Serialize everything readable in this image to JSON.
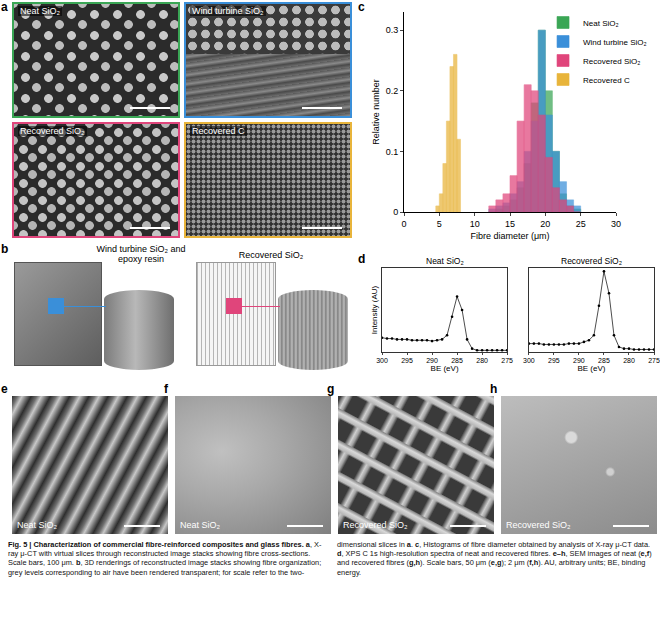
{
  "figure": {
    "panels": [
      {
        "label": "a",
        "images": [
          {
            "label": "Neat SiO₂",
            "color": "#3aa655"
          },
          {
            "label": "Wind turbine SiO₂",
            "color": "#3a8fd9"
          },
          {
            "label": "Recovered SiO₂",
            "color": "#e0457b"
          },
          {
            "label": "Recovered C",
            "color": "#e8b43a"
          }
        ]
      },
      {
        "label": "b",
        "images": [
          {
            "label": "Wind turbine SiO₂ and epoxy resin",
            "color": "#3a8fd9"
          },
          {
            "label": "Recovered SiO₂",
            "color": "#e0457b"
          }
        ]
      },
      {
        "label": "c"
      },
      {
        "label": "d"
      },
      {
        "label": "e",
        "images": [
          {
            "label": "Neat SiO₂"
          }
        ]
      },
      {
        "label": "f",
        "images": [
          {
            "label": "Neat SiO₂"
          }
        ]
      },
      {
        "label": "g",
        "images": [
          {
            "label": "Recovered SiO₂"
          }
        ]
      },
      {
        "label": "h",
        "images": [
          {
            "label": "Recovered SiO₂"
          }
        ]
      }
    ],
    "caption": [
      {
        "text": "Fig. 5 | Characterization of commercial fibre-reinforced composites and glass fibres. ",
        "bold": true
      },
      {
        "text": "a",
        "bold": true
      },
      {
        "text": ", X-ray μ-CT with virtual slices through reconstructed image stacks showing fibre cross-sections. Scale bars, 100 μm. ",
        "bold": false
      },
      {
        "text": "b",
        "bold": true
      },
      {
        "text": ", 3D renderings of reconstructed image stacks showing fibre organization; grey levels corresponding to air have been rendered transparent; for scale refer to the two-dimensional slices in ",
        "bold": false
      },
      {
        "text": "a",
        "bold": true
      },
      {
        "text": ". ",
        "bold": false
      },
      {
        "text": "c",
        "bold": true
      },
      {
        "text": ", Histograms of fibre diameter obtained by analysis of X-ray μ-CT data. ",
        "bold": false
      },
      {
        "text": "d",
        "bold": true
      },
      {
        "text": ", XPS C 1s high-resolution spectra of neat and recovered fibres. ",
        "bold": false
      },
      {
        "text": "e–h",
        "bold": true
      },
      {
        "text": ", SEM images of neat (",
        "bold": false
      },
      {
        "text": "e,f",
        "bold": true
      },
      {
        "text": ") and recovered fibres (",
        "bold": false
      },
      {
        "text": "g,h",
        "bold": true
      },
      {
        "text": "). Scale bars, 50 μm (",
        "bold": false
      },
      {
        "text": "e,g",
        "bold": true
      },
      {
        "text": "); 2 μm (",
        "bold": false
      },
      {
        "text": "f,h",
        "bold": true
      },
      {
        "text": "). AU, arbitrary units; BE, binding energy.",
        "bold": false
      }
    ]
  },
  "chart_data": [
    {
      "type": "histogram",
      "xlabel": "Fibre diameter (μm)",
      "ylabel": "Relative number",
      "xlim": [
        0,
        30
      ],
      "xticks": [
        0,
        5,
        10,
        15,
        20,
        25,
        30
      ],
      "ylim": [
        0,
        0.33
      ],
      "yticks": [
        0,
        0.1,
        0.2,
        0.3
      ],
      "legend": "upper right",
      "series": [
        {
          "name": "Neat SiO₂",
          "color": "#3aa655",
          "bins": [
            12,
            13,
            14,
            15,
            16,
            17,
            18,
            19,
            20,
            21,
            22,
            23,
            24,
            25
          ],
          "values": [
            0,
            0.005,
            0.01,
            0.02,
            0.04,
            0.08,
            0.18,
            0.3,
            0.2,
            0.1,
            0.03,
            0.01,
            0.005
          ]
        },
        {
          "name": "Wind turbine SiO₂",
          "color": "#3a8fd9",
          "bins": [
            12,
            13,
            14,
            15,
            16,
            17,
            18,
            19,
            20,
            21,
            22,
            23,
            24,
            25
          ],
          "values": [
            0.005,
            0.01,
            0.015,
            0.03,
            0.05,
            0.1,
            0.15,
            0.3,
            0.16,
            0.1,
            0.05,
            0.02,
            0.01
          ]
        },
        {
          "name": "Recovered SiO₂",
          "color": "#e0457b",
          "bins": [
            12,
            13,
            14,
            15,
            16,
            17,
            18,
            19,
            20,
            21,
            22,
            23,
            24,
            25
          ],
          "values": [
            0.01,
            0.02,
            0.03,
            0.06,
            0.15,
            0.21,
            0.2,
            0.16,
            0.09,
            0.04,
            0.02,
            0.01,
            0
          ]
        },
        {
          "name": "Recovered C",
          "color": "#e8b43a",
          "bins": [
            4.5,
            5,
            5.5,
            6,
            6.5,
            7,
            7.5,
            8
          ],
          "values": [
            0.01,
            0.03,
            0.08,
            0.15,
            0.24,
            0.26,
            0.12
          ]
        }
      ]
    },
    {
      "type": "scatter",
      "title": "Neat SiO₂",
      "xlabel": "BE (eV)",
      "ylabel": "Intensity (AU)",
      "xlim": [
        300,
        275
      ],
      "xticks": [
        300,
        295,
        290,
        285,
        280,
        275
      ],
      "ylim": [
        0,
        1
      ],
      "tick_labels": "x",
      "color": "#000000",
      "marker": "circle",
      "x": [
        300,
        299,
        298,
        297,
        296,
        295,
        294,
        293,
        292,
        291,
        290,
        289,
        288,
        287,
        286,
        285,
        284,
        283,
        282,
        281,
        280,
        279,
        278,
        277,
        276,
        275
      ],
      "values": [
        0.17,
        0.16,
        0.16,
        0.15,
        0.15,
        0.15,
        0.14,
        0.14,
        0.14,
        0.14,
        0.13,
        0.14,
        0.15,
        0.2,
        0.42,
        0.66,
        0.5,
        0.15,
        0.04,
        0.02,
        0.02,
        0.02,
        0.02,
        0.02,
        0.02,
        0.02
      ]
    },
    {
      "type": "scatter",
      "title": "Recovered SiO₂",
      "xlabel": "BE (eV)",
      "xlim": [
        300,
        275
      ],
      "xticks": [
        300,
        295,
        290,
        285,
        280,
        275
      ],
      "ylim": [
        0,
        1
      ],
      "tick_labels": "x",
      "color": "#000000",
      "marker": "circle",
      "x": [
        300,
        299,
        298,
        297,
        296,
        295,
        294,
        293,
        292,
        291,
        290,
        289,
        288,
        287,
        286,
        285,
        284,
        283,
        282,
        281,
        280,
        279,
        278,
        277,
        276,
        275
      ],
      "values": [
        0.1,
        0.1,
        0.1,
        0.09,
        0.09,
        0.09,
        0.09,
        0.09,
        0.1,
        0.1,
        0.1,
        0.12,
        0.14,
        0.2,
        0.55,
        0.96,
        0.7,
        0.2,
        0.06,
        0.04,
        0.04,
        0.03,
        0.03,
        0.03,
        0.03,
        0.03
      ]
    }
  ]
}
